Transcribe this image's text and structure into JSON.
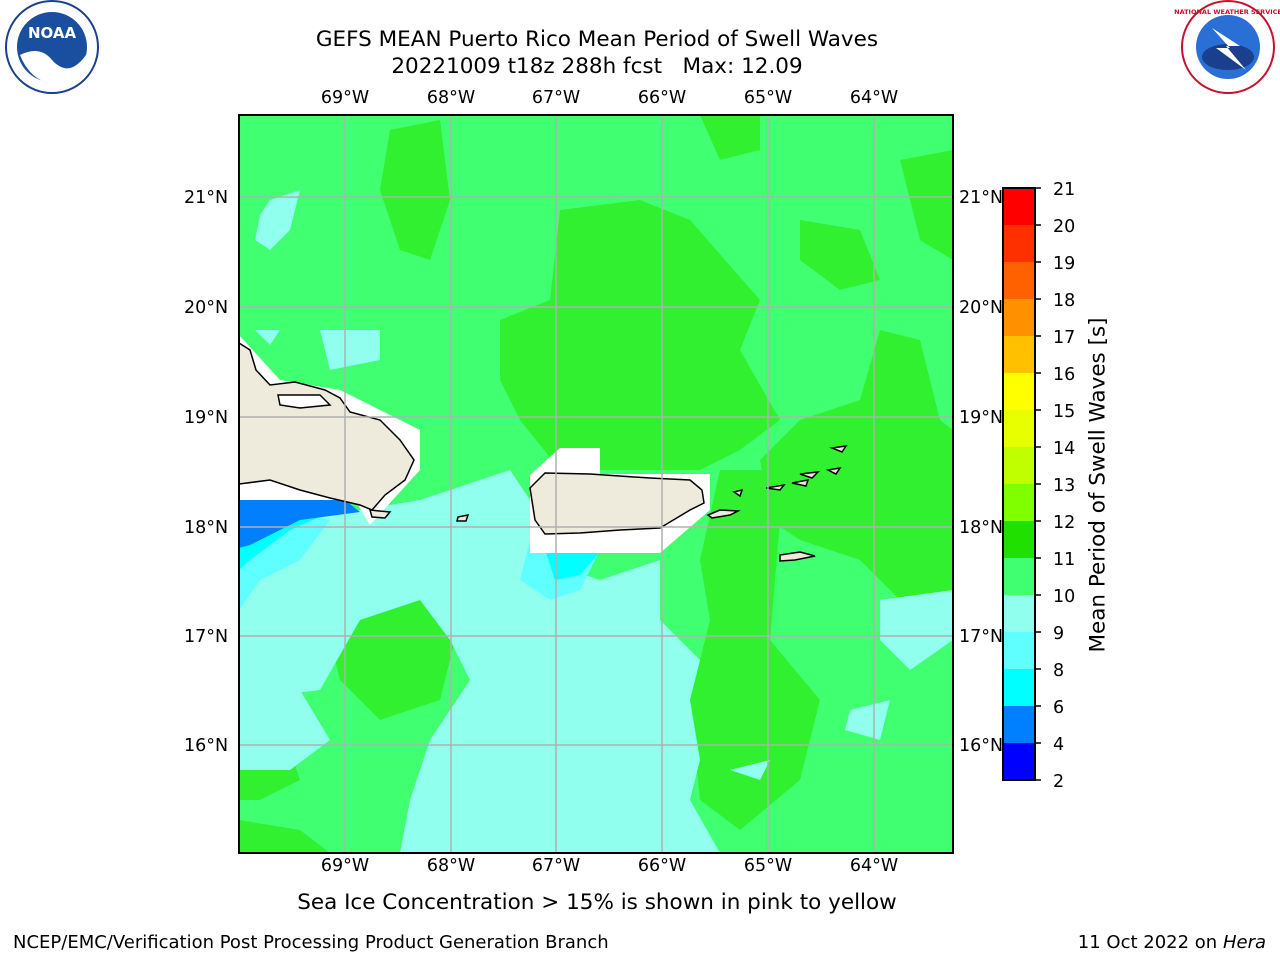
{
  "title": {
    "line1": "GEFS MEAN Puerto Rico Mean Period of Swell Waves",
    "line2": "20221009 t18z 288h fcst   Max: 12.09"
  },
  "map": {
    "lon_range": [
      -70.0,
      -63.25
    ],
    "lat_range": [
      15.0,
      21.75
    ],
    "lon_labels": [
      "69°W",
      "68°W",
      "67°W",
      "66°W",
      "65°W",
      "64°W"
    ],
    "lat_labels": [
      "21°N",
      "20°N",
      "19°N",
      "18°N",
      "17°N",
      "16°N"
    ],
    "land_color": "#efebdc",
    "gridline_color": "#b0b0b0"
  },
  "colorbar": {
    "label": "Mean Period of Swell Waves [s]",
    "ticks": [
      "21",
      "20",
      "19",
      "18",
      "17",
      "16",
      "15",
      "14",
      "13",
      "12",
      "11",
      "10",
      "9",
      "8",
      "6",
      "4",
      "2"
    ],
    "colors_bottom_to_top": [
      "#0000ff",
      "#0080ff",
      "#00ffff",
      "#60ffff",
      "#90ffee",
      "#40ff70",
      "#20e000",
      "#40ff00",
      "#80ff00",
      "#c0ff00",
      "#ffff00",
      "#ffe000",
      "#ffc000",
      "#ff9000",
      "#ff6000",
      "#ff3000",
      "#ff0000"
    ]
  },
  "note": "Sea Ice Concentration > 15% is shown in pink to yellow",
  "footer": {
    "left": "NCEP/EMC/Verification Post Processing Product Generation Branch",
    "right_prefix": "11 Oct 2022 on ",
    "right_host": "Hera"
  },
  "logos": {
    "left": "NOAA",
    "right": "NATIONAL WEATHER SERVICE"
  }
}
